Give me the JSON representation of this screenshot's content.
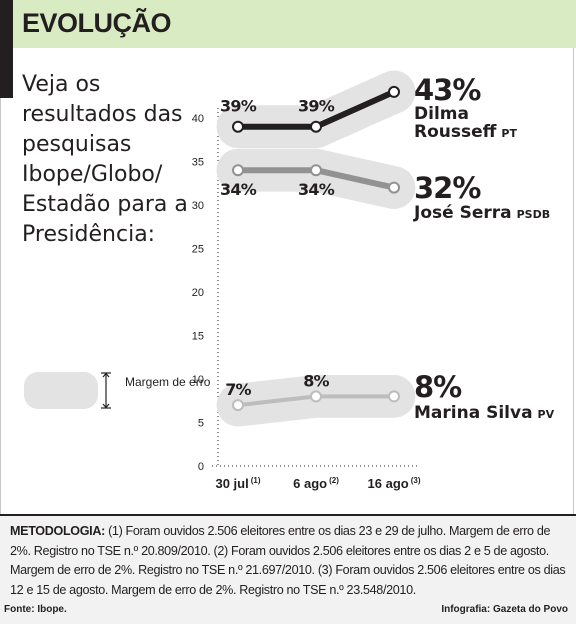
{
  "header": {
    "title": "EVOLUÇÃO"
  },
  "intro": {
    "text": "Veja os resultados das pesquisas Ibope/Globo/ Estadão para a Presidência:"
  },
  "legend": {
    "label": "Margem de erro"
  },
  "colors": {
    "header_bg": "#d9ebc2",
    "band": "#e3e3e3",
    "dilma": "#231f20",
    "serra": "#929292",
    "marina": "#bdbdbd",
    "footer_bg": "#f2f2f2"
  },
  "chart_data": {
    "type": "line",
    "x_labels": [
      "30 jul",
      "6 ago",
      "16 ago"
    ],
    "x_notes": [
      "(1)",
      "(2)",
      "(3)"
    ],
    "y_ticks": [
      0,
      5,
      10,
      15,
      20,
      25,
      30,
      35,
      40
    ],
    "ylim": [
      0,
      43
    ],
    "margin_of_error": 2,
    "series": [
      {
        "name": "Dilma Rousseff",
        "party": "PT",
        "values": [
          39,
          39,
          43
        ],
        "labels": [
          "39%",
          "39%",
          "43%"
        ]
      },
      {
        "name": "José Serra",
        "party": "PSDB",
        "values": [
          34,
          34,
          32
        ],
        "labels": [
          "34%",
          "34%",
          "32%"
        ]
      },
      {
        "name": "Marina Silva",
        "party": "PV",
        "values": [
          7,
          8,
          8
        ],
        "labels": [
          "7%",
          "8%",
          "8%"
        ]
      }
    ]
  },
  "footer": {
    "method_label": "METODOLOGIA:",
    "method_text": " (1) Foram ouvidos 2.506 eleitores entre os dias 23 e 29 de julho. Margem de erro de 2%. Registro no TSE n.º 20.809/2010. (2) Foram ouvidos 2.506 eleitores entre os dias 2 e 5 de agosto. Margem de erro de 2%. Registro no TSE n.º 21.697/2010. (3) Foram ouvidos 2.506 eleitores entre os dias 12 e 15 de agosto. Margem de erro de 2%. Registro no TSE n.º 23.548/2010.",
    "source": "Fonte: Ibope.",
    "credit": "Infografia: Gazeta do Povo"
  }
}
